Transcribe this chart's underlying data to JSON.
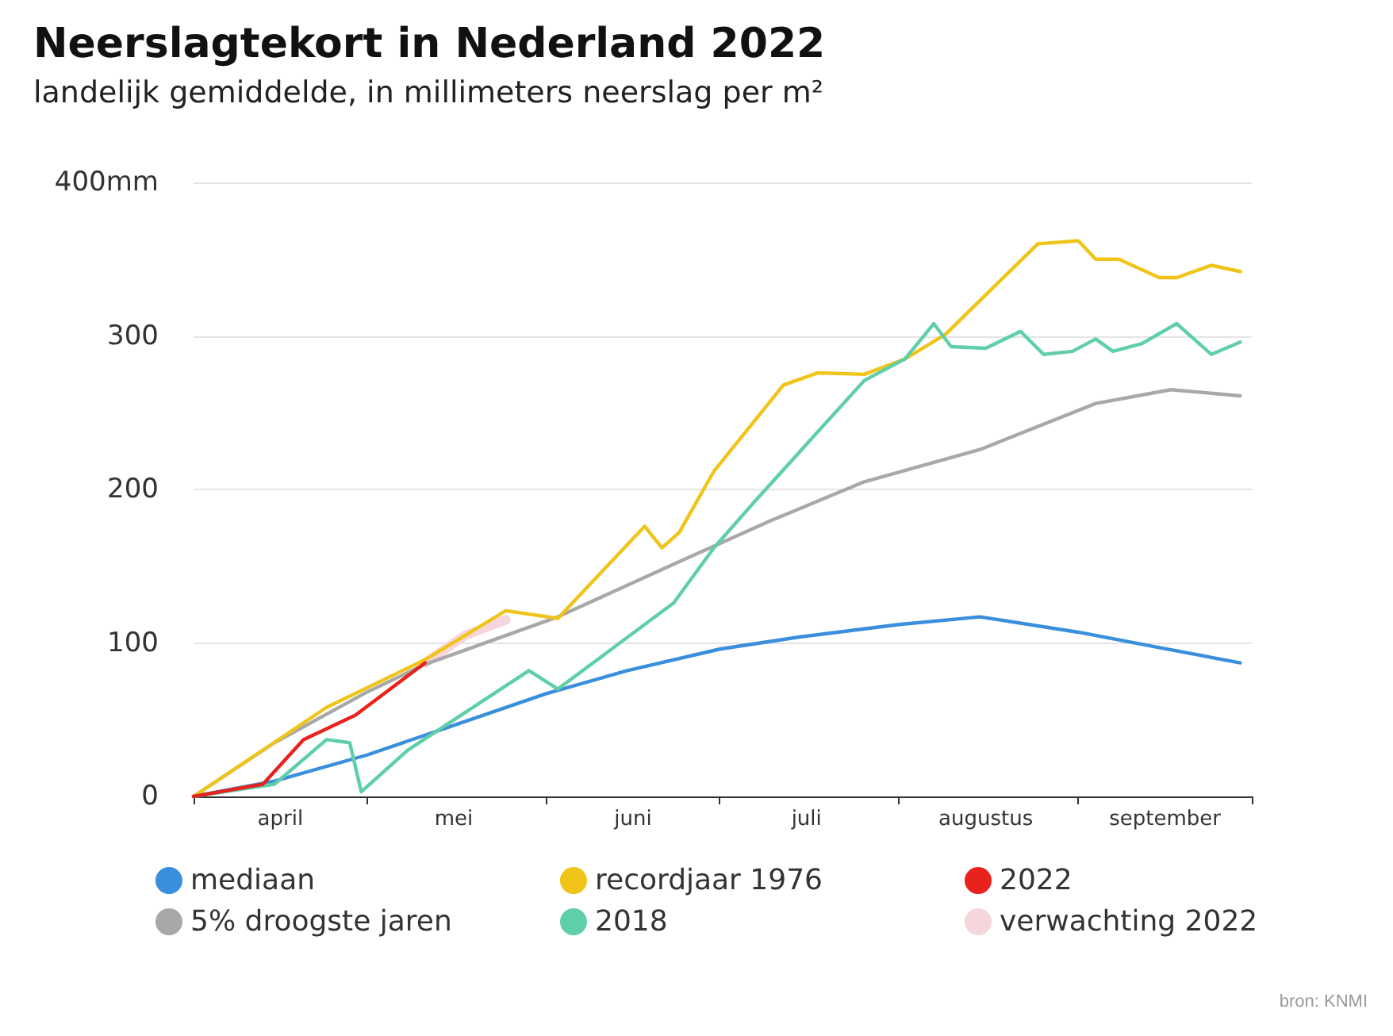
{
  "chart_data": {
    "type": "line",
    "title": "Neerslagtekort in Nederland 2022",
    "subtitle": "landelijk gemiddelde, in millimeters neerslag per m²",
    "annotations": [
      "bron: KNMI"
    ],
    "xlim": [
      "--04-01",
      "--10-01"
    ],
    "xticks": [
      {
        "value": "--04-01",
        "label": null
      },
      {
        "value": "--04-16",
        "label": "april"
      },
      {
        "value": "--05-01",
        "label": null
      },
      {
        "value": "--05-16",
        "label": "mei"
      },
      {
        "value": "--06-01",
        "label": null
      },
      {
        "value": "--06-16",
        "label": "juni"
      },
      {
        "value": "--07-01",
        "label": null
      },
      {
        "value": "--07-16",
        "label": "juli"
      },
      {
        "value": "--08-01",
        "label": null
      },
      {
        "value": "--08-16",
        "label": "augustus"
      },
      {
        "value": "--09-01",
        "label": null
      },
      {
        "value": "--09-16",
        "label": "september"
      },
      {
        "value": "--10-01",
        "label": null
      }
    ],
    "ylim": [
      0,
      400
    ],
    "yticks": [
      0,
      100,
      200,
      300,
      {
        "value": 400,
        "label": "400mm"
      }
    ],
    "grid": "y",
    "legend": "bottom",
    "marker": "none",
    "line_style": "solid",
    "series": [
      {
        "name": "mediaan",
        "color": "#3a8fdd",
        "x": [
          "--04-01",
          "--04-15",
          "--05-01",
          "--05-15",
          "--06-01",
          "--06-15",
          "--07-01",
          "--07-15",
          "--08-01",
          "--08-15",
          "--09-01",
          "--09-15",
          "--09-29"
        ],
        "values": [
          0,
          10,
          27,
          45,
          67,
          82,
          96,
          104,
          112,
          117,
          107,
          97,
          87
        ]
      },
      {
        "name": "5% droogste jaren",
        "color": "#a8a8a8",
        "x": [
          "--04-01",
          "--04-15",
          "--05-01",
          "--05-11",
          "--06-03",
          "--06-24",
          "--07-10",
          "--07-26",
          "--08-15",
          "--09-04",
          "--09-17",
          "--09-29"
        ],
        "values": [
          0,
          35,
          68,
          86,
          117,
          153,
          180,
          205,
          226,
          256,
          265,
          261
        ]
      },
      {
        "name": "recordjaar 1976",
        "color": "#f0c419",
        "x": [
          "--04-01",
          "--04-24",
          "--05-11",
          "--05-25",
          "--06-03",
          "--06-18",
          "--06-21",
          "--06-24",
          "--06-30",
          "--07-12",
          "--07-18",
          "--07-26",
          "--08-02",
          "--08-09",
          "--08-25",
          "--09-01",
          "--09-04",
          "--09-08",
          "--09-15",
          "--09-18",
          "--09-24",
          "--09-29"
        ],
        "values": [
          0,
          58,
          89,
          121,
          116,
          176,
          162,
          172,
          212,
          268,
          276,
          275,
          285,
          301,
          360,
          362,
          350,
          350,
          338,
          338,
          346,
          342
        ]
      },
      {
        "name": "2018",
        "color": "#5fcfa8",
        "x": [
          "--04-01",
          "--04-15",
          "--04-24",
          "--04-28",
          "--04-30",
          "--05-08",
          "--05-29",
          "--06-03",
          "--06-23",
          "--06-30",
          "--07-07",
          "--07-26",
          "--08-02",
          "--08-07",
          "--08-10",
          "--08-16",
          "--08-22",
          "--08-26",
          "--08-31",
          "--09-04",
          "--09-07",
          "--09-12",
          "--09-18",
          "--09-24",
          "--09-29"
        ],
        "values": [
          0,
          8,
          37,
          35,
          3,
          30,
          82,
          70,
          126,
          162,
          192,
          271,
          285,
          308,
          293,
          292,
          303,
          288,
          290,
          298,
          290,
          295,
          308,
          288,
          296
        ]
      },
      {
        "name": "2022",
        "color": "#e8221c",
        "x": [
          "--04-01",
          "--04-13",
          "--04-20",
          "--04-29",
          "--05-11"
        ],
        "values": [
          0,
          8,
          37,
          53,
          87
        ]
      },
      {
        "name": "verwachting 2022",
        "color": "#f5d6dc",
        "x": [
          "--05-11",
          "--05-18",
          "--05-25"
        ],
        "values": [
          87,
          105,
          115
        ]
      }
    ]
  }
}
